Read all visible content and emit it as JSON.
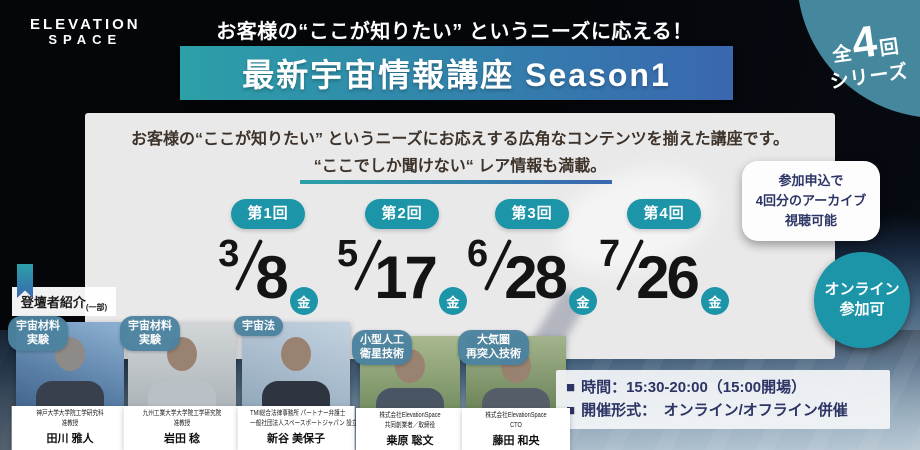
{
  "theme": {
    "accent": "#1d95a9",
    "circle": "#45889e",
    "grad1": "#2ba0a8",
    "grad2": "#3a67b0",
    "navy": "#2c3565",
    "ink": "#3e332a",
    "panel": "#e9e9ea",
    "tag": "#4c83a0"
  },
  "brand": {
    "line1": "ELEVATION",
    "line2": "SPACE"
  },
  "header": {
    "catchcopy": "お客様の“ここが知りたい” というニーズに応える！",
    "title": "最新宇宙情報講座 Season1",
    "series": {
      "prefix": "全",
      "count": "4",
      "unit": "回",
      "word": "シリーズ"
    }
  },
  "panel": {
    "desc1": "お客様の“ここが知りたい” というニーズにお応えする広角なコンテンツを揃えた講座です。",
    "desc2": "“ここでしか聞けない“ レア情報も満載。"
  },
  "sessions": [
    {
      "label": "第1回",
      "month": "3",
      "day": "8",
      "weekday": "金"
    },
    {
      "label": "第2回",
      "month": "5",
      "day": "17",
      "weekday": "金"
    },
    {
      "label": "第3回",
      "month": "6",
      "day": "28",
      "weekday": "金"
    },
    {
      "label": "第4回",
      "month": "7",
      "day": "26",
      "weekday": "金"
    }
  ],
  "archive_note": {
    "line1": "参加申込で",
    "line2": "4回分のアーカイブ",
    "line3": "視聴可能"
  },
  "online_badge": {
    "line1": "オンライン",
    "line2": "参加可"
  },
  "speakers_label": {
    "title": "登壇者紹介",
    "note": "(一部)"
  },
  "speakers": [
    {
      "tag1": "宇宙材料",
      "tag2": "実験",
      "org1": "神戸大学大学院工学研究科",
      "org2": "准教授",
      "name": "田川 雅人"
    },
    {
      "tag1": "宇宙材料",
      "tag2": "実験",
      "org1": "九州工業大学大学院工学研究院",
      "org2": "准教授",
      "name": "岩田 稔"
    },
    {
      "tag1": "宇宙法",
      "tag2": "",
      "org1": "TMI総合法律事務所 パートナー弁護士",
      "org2": "一般社団法人スペースポートジャパン 設立理事",
      "name": "新谷 美保子"
    },
    {
      "tag1": "小型人工",
      "tag2": "衛星技術",
      "org1": "株式会社ElevationSpace",
      "org2": "共同創業者／取締役",
      "name": "桒原 聡文"
    },
    {
      "tag1": "大気圏",
      "tag2": "再突入技術",
      "org1": "株式会社ElevationSpace",
      "org2": "CTO",
      "name": "藤田 和央"
    }
  ],
  "event_info": {
    "bullet": "■",
    "time": "時間：15:30-20:00（15:00開場）",
    "format": "開催形式：　オンライン/オフライン併催"
  }
}
